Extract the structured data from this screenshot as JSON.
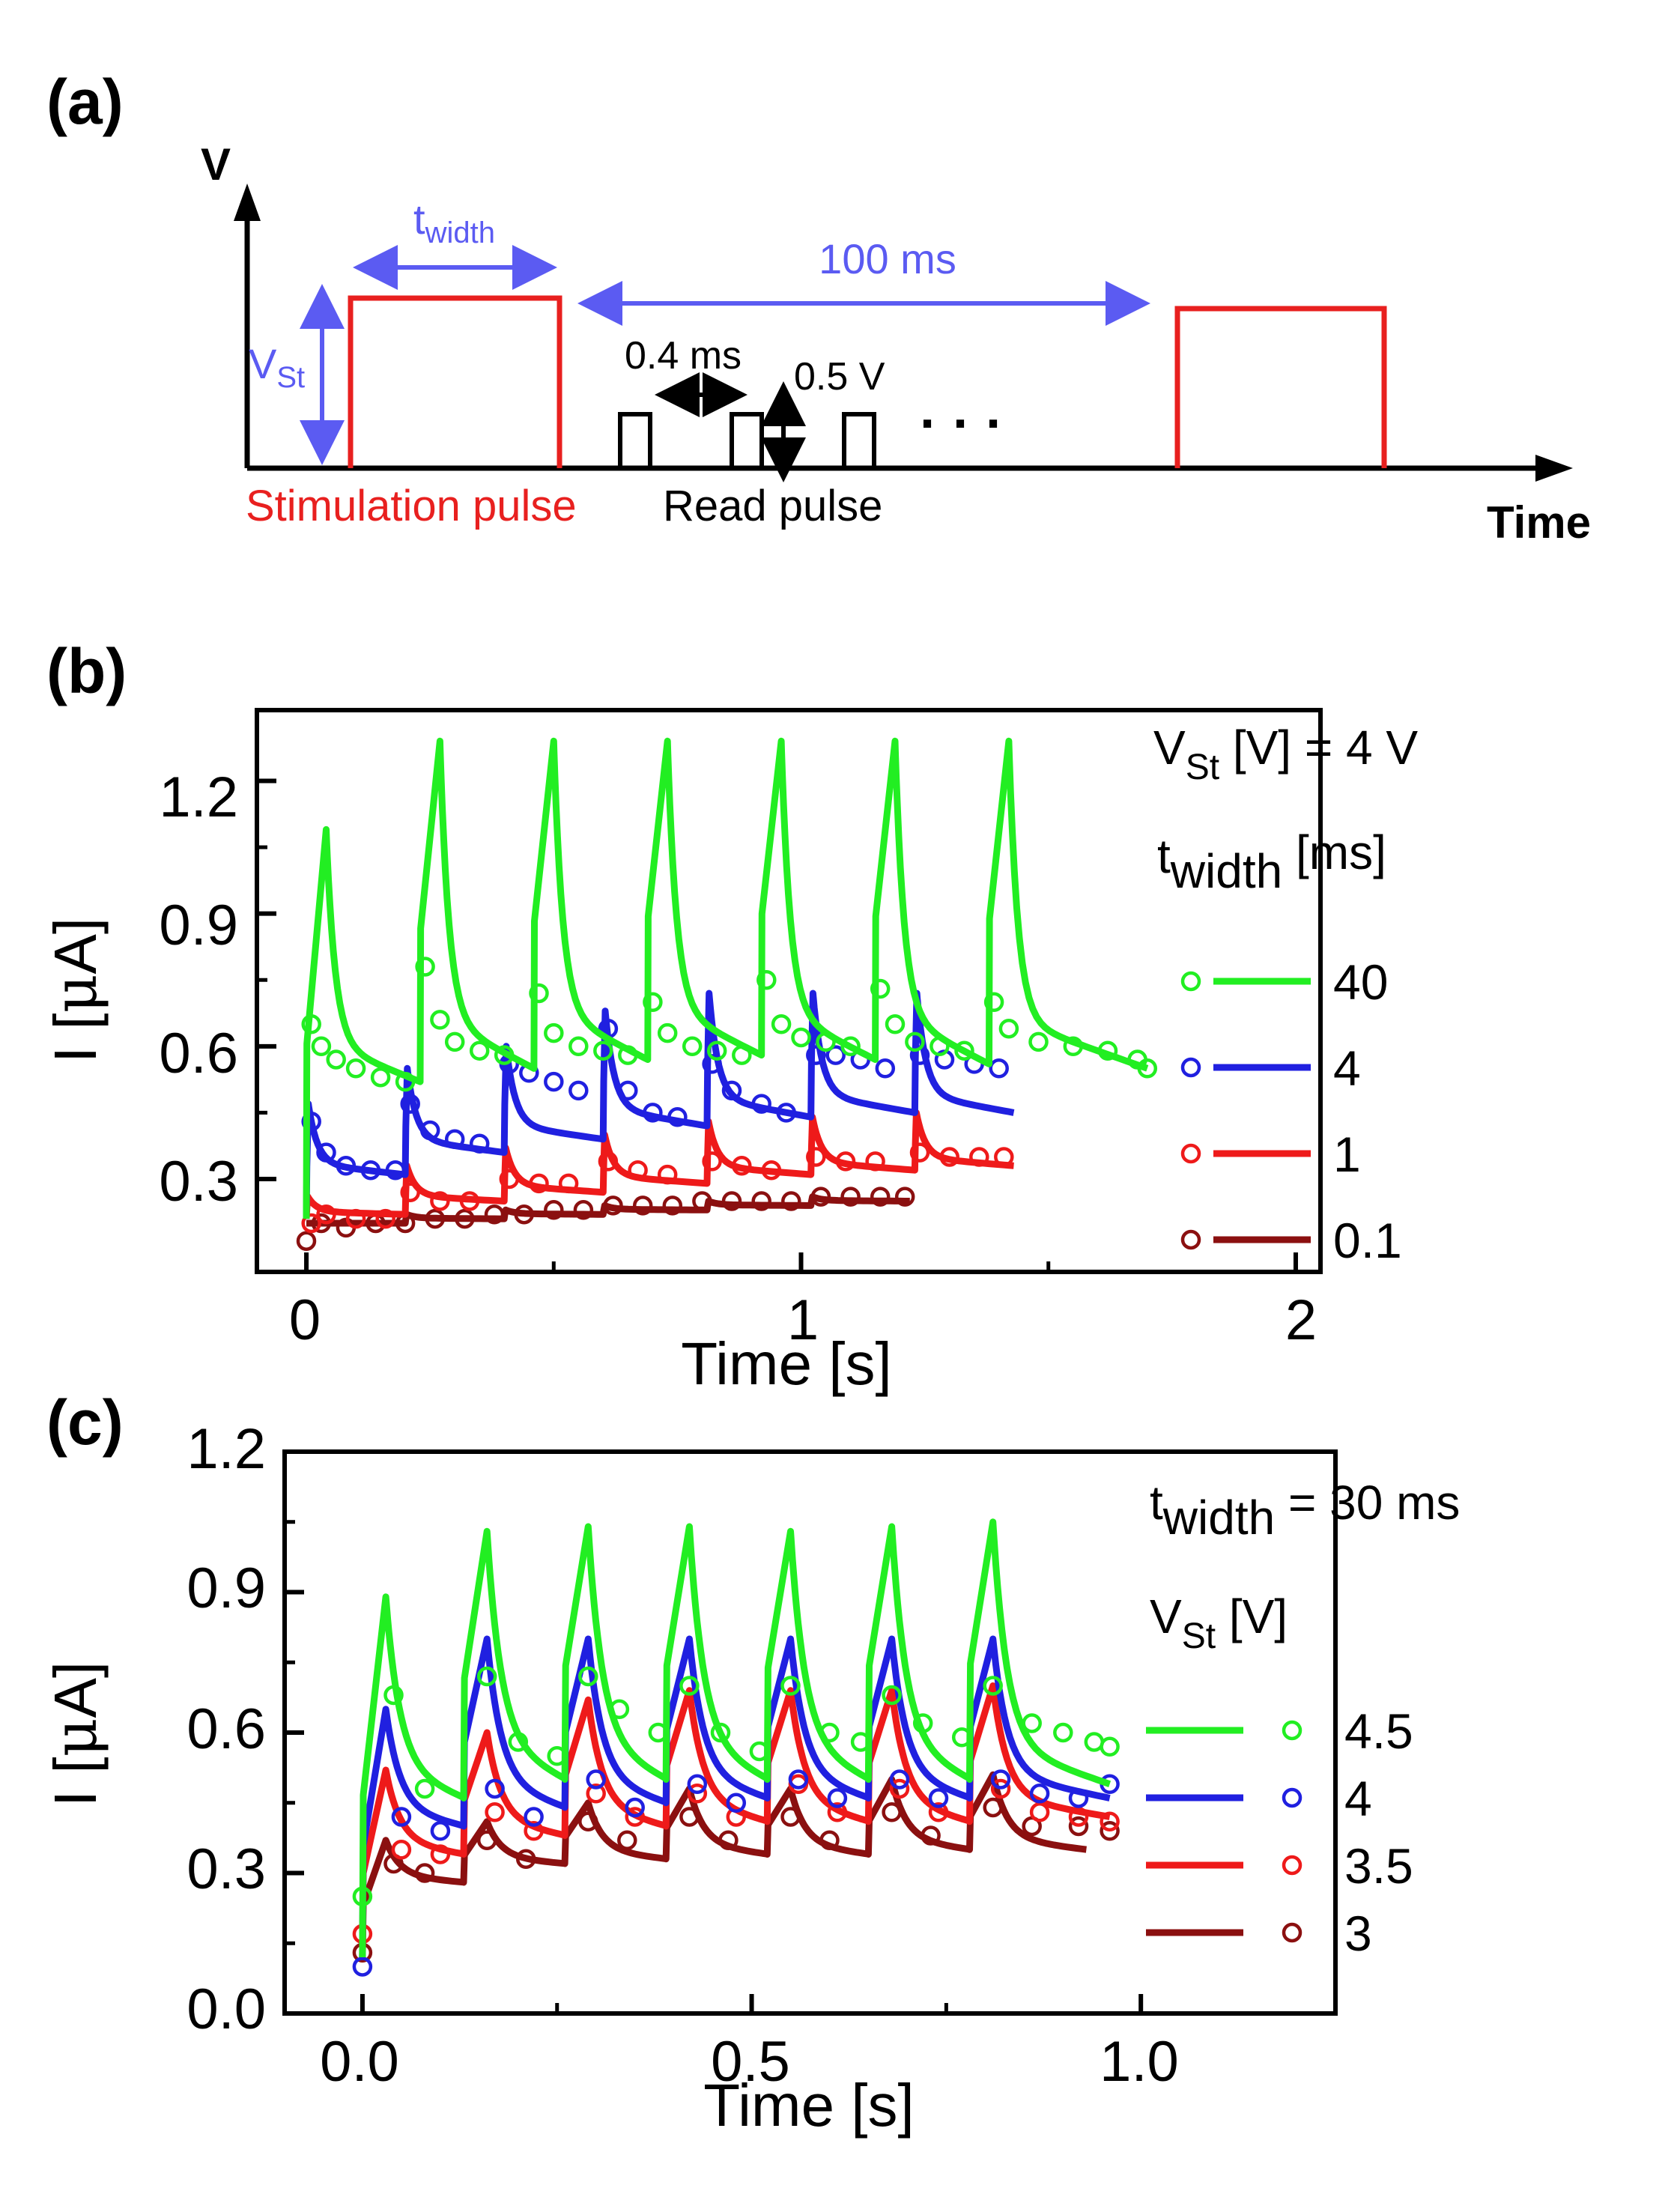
{
  "panel_a": {
    "label": "(a)",
    "y_axis": "V",
    "x_axis": "Time",
    "t_width_main": "t",
    "t_width_sub": "width",
    "v_st_main": "V",
    "v_st_sub": "St",
    "period": "100 ms",
    "read_spacing": "0.4 ms",
    "read_amplitude": "0.5 V",
    "ellipsis": "· · ·",
    "stim_label": "Stimulation pulse",
    "read_label": "Read pulse",
    "colors": {
      "stim": "#e8201f",
      "read": "#000000",
      "annot": "#5b5bf2"
    }
  },
  "panel_b": {
    "label": "(b)",
    "ylabel_main": "I [",
    "ylabel_mu": "μ",
    "ylabel_end": "A]",
    "xlabel": "Time [s]",
    "cond_main": "V",
    "cond_sub": "St",
    "cond_rest": " [V] = 4 V",
    "legend_title_main": "t",
    "legend_title_sub": "width",
    "legend_title_rest": " [ms]",
    "legend": [
      "40",
      "4",
      "1",
      "0.1"
    ],
    "xticks": [
      "0",
      "1",
      "2"
    ],
    "yticks": [
      "0.3",
      "0.6",
      "0.9",
      "1.2"
    ]
  },
  "panel_c": {
    "label": "(c)",
    "ylabel_main": "I [",
    "ylabel_mu": "μ",
    "ylabel_end": "A]",
    "xlabel": "Time [s]",
    "cond_main": "t",
    "cond_sub": "width",
    "cond_rest": " = 30 ms",
    "legend_title_main": "V",
    "legend_title_sub": "St",
    "legend_title_rest": " [V]",
    "legend": [
      "4.5",
      "4",
      "3.5",
      "3"
    ],
    "xticks": [
      "0.0",
      "0.5",
      "1.0"
    ],
    "yticks": [
      "0.0",
      "0.3",
      "0.6",
      "0.9",
      "1.2"
    ]
  },
  "chart_data": [
    {
      "id": "b",
      "type": "line",
      "title": "V_St [V] = 4 V",
      "xlabel": "Time [s]",
      "ylabel": "I [μA]",
      "xlim": [
        -0.1,
        2.05
      ],
      "ylim": [
        0.09,
        1.36
      ],
      "grid": false,
      "legend_title": "t_width [ms]",
      "legend_position": "right",
      "series": [
        {
          "name": "40",
          "color": "#22ee22",
          "pulse_times": [
            0.0,
            0.23,
            0.46,
            0.69,
            0.92,
            1.15,
            1.38
          ],
          "pulse_width": 0.04,
          "peaks": [
            1.09,
            1.29,
            1.29,
            1.29,
            1.29,
            1.29,
            1.29
          ],
          "baselines": [
            0.52,
            0.55,
            0.57,
            0.58,
            0.57,
            0.56,
            0.55
          ],
          "end": 1.7,
          "markers": [
            [
              0.01,
              0.65
            ],
            [
              0.03,
              0.6
            ],
            [
              0.06,
              0.57
            ],
            [
              0.1,
              0.55
            ],
            [
              0.15,
              0.53
            ],
            [
              0.2,
              0.52
            ],
            [
              0.24,
              0.78
            ],
            [
              0.27,
              0.66
            ],
            [
              0.3,
              0.61
            ],
            [
              0.35,
              0.59
            ],
            [
              0.4,
              0.58
            ],
            [
              0.47,
              0.72
            ],
            [
              0.5,
              0.63
            ],
            [
              0.55,
              0.6
            ],
            [
              0.6,
              0.59
            ],
            [
              0.65,
              0.58
            ],
            [
              0.7,
              0.7
            ],
            [
              0.73,
              0.63
            ],
            [
              0.78,
              0.6
            ],
            [
              0.83,
              0.59
            ],
            [
              0.88,
              0.58
            ],
            [
              0.93,
              0.75
            ],
            [
              0.96,
              0.65
            ],
            [
              1.0,
              0.62
            ],
            [
              1.05,
              0.61
            ],
            [
              1.1,
              0.6
            ],
            [
              1.16,
              0.73
            ],
            [
              1.19,
              0.65
            ],
            [
              1.23,
              0.61
            ],
            [
              1.28,
              0.6
            ],
            [
              1.33,
              0.59
            ],
            [
              1.39,
              0.7
            ],
            [
              1.42,
              0.64
            ],
            [
              1.48,
              0.61
            ],
            [
              1.55,
              0.6
            ],
            [
              1.62,
              0.59
            ],
            [
              1.68,
              0.57
            ],
            [
              1.7,
              0.55
            ]
          ]
        },
        {
          "name": "4",
          "color": "#2020e0",
          "pulse_times": [
            0.0,
            0.2,
            0.4,
            0.6,
            0.81,
            1.02,
            1.23
          ],
          "pulse_width": 0.004,
          "peaks": [
            0.47,
            0.55,
            0.6,
            0.68,
            0.72,
            0.72,
            0.72
          ],
          "baselines": [
            0.31,
            0.36,
            0.39,
            0.42,
            0.44,
            0.45,
            0.45
          ],
          "end": 1.43,
          "markers": [
            [
              0.01,
              0.43
            ],
            [
              0.04,
              0.36
            ],
            [
              0.08,
              0.33
            ],
            [
              0.13,
              0.32
            ],
            [
              0.18,
              0.32
            ],
            [
              0.21,
              0.47
            ],
            [
              0.25,
              0.41
            ],
            [
              0.3,
              0.39
            ],
            [
              0.35,
              0.38
            ],
            [
              0.41,
              0.56
            ],
            [
              0.45,
              0.54
            ],
            [
              0.5,
              0.52
            ],
            [
              0.55,
              0.5
            ],
            [
              0.61,
              0.64
            ],
            [
              0.65,
              0.5
            ],
            [
              0.7,
              0.45
            ],
            [
              0.75,
              0.44
            ],
            [
              0.82,
              0.56
            ],
            [
              0.86,
              0.5
            ],
            [
              0.92,
              0.47
            ],
            [
              0.97,
              0.45
            ],
            [
              1.03,
              0.58
            ],
            [
              1.07,
              0.58
            ],
            [
              1.12,
              0.57
            ],
            [
              1.17,
              0.55
            ],
            [
              1.24,
              0.58
            ],
            [
              1.29,
              0.57
            ],
            [
              1.35,
              0.56
            ],
            [
              1.4,
              0.55
            ]
          ]
        },
        {
          "name": "1",
          "color": "#ee1a1a",
          "pulse_times": [
            0.0,
            0.2,
            0.4,
            0.6,
            0.81,
            1.02,
            1.23
          ],
          "pulse_width": 0.001,
          "peaks": [
            0.26,
            0.33,
            0.37,
            0.4,
            0.43,
            0.44,
            0.45
          ],
          "baselines": [
            0.22,
            0.25,
            0.27,
            0.29,
            0.31,
            0.32,
            0.33
          ],
          "end": 1.43,
          "markers": [
            [
              0.01,
              0.2
            ],
            [
              0.04,
              0.22
            ],
            [
              0.1,
              0.21
            ],
            [
              0.16,
              0.21
            ],
            [
              0.21,
              0.27
            ],
            [
              0.27,
              0.25
            ],
            [
              0.33,
              0.25
            ],
            [
              0.41,
              0.3
            ],
            [
              0.47,
              0.29
            ],
            [
              0.53,
              0.29
            ],
            [
              0.61,
              0.34
            ],
            [
              0.67,
              0.32
            ],
            [
              0.73,
              0.31
            ],
            [
              0.82,
              0.34
            ],
            [
              0.88,
              0.33
            ],
            [
              0.94,
              0.32
            ],
            [
              1.03,
              0.35
            ],
            [
              1.09,
              0.34
            ],
            [
              1.15,
              0.34
            ],
            [
              1.24,
              0.36
            ],
            [
              1.3,
              0.35
            ],
            [
              1.36,
              0.35
            ],
            [
              1.41,
              0.35
            ]
          ]
        },
        {
          "name": "0.1",
          "color": "#8b1010",
          "pulse_times": [
            0.0,
            0.2,
            0.4,
            0.6,
            0.81,
            1.02
          ],
          "pulse_width": 0.0001,
          "peaks": [
            0.2,
            0.22,
            0.23,
            0.24,
            0.25,
            0.26
          ],
          "baselines": [
            0.2,
            0.21,
            0.22,
            0.23,
            0.24,
            0.25
          ],
          "end": 1.22,
          "markers": [
            [
              0.0,
              0.16
            ],
            [
              0.03,
              0.2
            ],
            [
              0.08,
              0.19
            ],
            [
              0.14,
              0.2
            ],
            [
              0.2,
              0.2
            ],
            [
              0.26,
              0.21
            ],
            [
              0.32,
              0.21
            ],
            [
              0.38,
              0.22
            ],
            [
              0.44,
              0.22
            ],
            [
              0.5,
              0.23
            ],
            [
              0.56,
              0.23
            ],
            [
              0.62,
              0.24
            ],
            [
              0.68,
              0.24
            ],
            [
              0.74,
              0.24
            ],
            [
              0.8,
              0.25
            ],
            [
              0.86,
              0.25
            ],
            [
              0.92,
              0.25
            ],
            [
              0.98,
              0.25
            ],
            [
              1.04,
              0.26
            ],
            [
              1.1,
              0.26
            ],
            [
              1.16,
              0.26
            ],
            [
              1.21,
              0.26
            ]
          ]
        }
      ]
    },
    {
      "id": "c",
      "type": "line",
      "title": "t_width = 30 ms",
      "xlabel": "Time [s]",
      "ylabel": "I [μA]",
      "xlim": [
        -0.1,
        1.25
      ],
      "ylim": [
        0.0,
        1.2
      ],
      "grid": false,
      "legend_title": "V_St [V]",
      "legend_position": "right",
      "series": [
        {
          "name": "4.5",
          "color": "#22ee22",
          "pulse_times": [
            0.0,
            0.13,
            0.26,
            0.39,
            0.52,
            0.65,
            0.78
          ],
          "pulse_width": 0.03,
          "peaks": [
            0.89,
            1.03,
            1.04,
            1.04,
            1.03,
            1.04,
            1.05
          ],
          "baselines": [
            0.46,
            0.5,
            0.5,
            0.5,
            0.5,
            0.5,
            0.49
          ],
          "end": 0.96,
          "markers": [
            [
              0.0,
              0.25
            ],
            [
              0.04,
              0.68
            ],
            [
              0.08,
              0.48
            ],
            [
              0.16,
              0.72
            ],
            [
              0.2,
              0.58
            ],
            [
              0.25,
              0.55
            ],
            [
              0.29,
              0.72
            ],
            [
              0.33,
              0.65
            ],
            [
              0.38,
              0.6
            ],
            [
              0.42,
              0.7
            ],
            [
              0.46,
              0.6
            ],
            [
              0.51,
              0.56
            ],
            [
              0.55,
              0.7
            ],
            [
              0.6,
              0.6
            ],
            [
              0.64,
              0.58
            ],
            [
              0.68,
              0.68
            ],
            [
              0.72,
              0.62
            ],
            [
              0.77,
              0.59
            ],
            [
              0.81,
              0.7
            ],
            [
              0.86,
              0.62
            ],
            [
              0.9,
              0.6
            ],
            [
              0.94,
              0.58
            ],
            [
              0.96,
              0.57
            ]
          ]
        },
        {
          "name": "4",
          "color": "#2020e0",
          "pulse_times": [
            0.0,
            0.13,
            0.26,
            0.39,
            0.52,
            0.65,
            0.78
          ],
          "pulse_width": 0.03,
          "peaks": [
            0.65,
            0.8,
            0.8,
            0.8,
            0.8,
            0.8,
            0.8
          ],
          "baselines": [
            0.4,
            0.44,
            0.45,
            0.46,
            0.46,
            0.46,
            0.46
          ],
          "end": 0.96,
          "markers": [
            [
              0.0,
              0.1
            ],
            [
              0.05,
              0.42
            ],
            [
              0.1,
              0.39
            ],
            [
              0.17,
              0.48
            ],
            [
              0.22,
              0.42
            ],
            [
              0.3,
              0.5
            ],
            [
              0.35,
              0.44
            ],
            [
              0.43,
              0.49
            ],
            [
              0.48,
              0.45
            ],
            [
              0.56,
              0.5
            ],
            [
              0.61,
              0.46
            ],
            [
              0.69,
              0.5
            ],
            [
              0.74,
              0.46
            ],
            [
              0.82,
              0.5
            ],
            [
              0.87,
              0.47
            ],
            [
              0.92,
              0.46
            ],
            [
              0.96,
              0.49
            ]
          ]
        },
        {
          "name": "3.5",
          "color": "#ee1a1a",
          "pulse_times": [
            0.0,
            0.13,
            0.26,
            0.39,
            0.52,
            0.65,
            0.78
          ],
          "pulse_width": 0.03,
          "peaks": [
            0.52,
            0.6,
            0.67,
            0.69,
            0.69,
            0.69,
            0.7
          ],
          "baselines": [
            0.34,
            0.38,
            0.4,
            0.41,
            0.41,
            0.41,
            0.42
          ],
          "end": 0.96,
          "markers": [
            [
              0.0,
              0.17
            ],
            [
              0.05,
              0.35
            ],
            [
              0.1,
              0.34
            ],
            [
              0.17,
              0.43
            ],
            [
              0.22,
              0.39
            ],
            [
              0.3,
              0.47
            ],
            [
              0.35,
              0.42
            ],
            [
              0.43,
              0.47
            ],
            [
              0.48,
              0.42
            ],
            [
              0.56,
              0.49
            ],
            [
              0.61,
              0.43
            ],
            [
              0.69,
              0.48
            ],
            [
              0.74,
              0.43
            ],
            [
              0.82,
              0.48
            ],
            [
              0.87,
              0.43
            ],
            [
              0.92,
              0.42
            ],
            [
              0.96,
              0.41
            ]
          ]
        },
        {
          "name": "3",
          "color": "#8b1010",
          "pulse_times": [
            0.0,
            0.13,
            0.26,
            0.39,
            0.52,
            0.65,
            0.78
          ],
          "pulse_width": 0.03,
          "peaks": [
            0.37,
            0.41,
            0.45,
            0.48,
            0.48,
            0.5,
            0.51
          ],
          "baselines": [
            0.28,
            0.32,
            0.33,
            0.34,
            0.34,
            0.35,
            0.35
          ],
          "end": 0.93,
          "markers": [
            [
              0.0,
              0.13
            ],
            [
              0.04,
              0.32
            ],
            [
              0.08,
              0.3
            ],
            [
              0.16,
              0.37
            ],
            [
              0.21,
              0.33
            ],
            [
              0.29,
              0.41
            ],
            [
              0.34,
              0.37
            ],
            [
              0.42,
              0.42
            ],
            [
              0.47,
              0.37
            ],
            [
              0.55,
              0.42
            ],
            [
              0.6,
              0.37
            ],
            [
              0.68,
              0.43
            ],
            [
              0.73,
              0.38
            ],
            [
              0.81,
              0.44
            ],
            [
              0.86,
              0.4
            ],
            [
              0.92,
              0.4
            ],
            [
              0.96,
              0.39
            ]
          ]
        }
      ]
    }
  ]
}
